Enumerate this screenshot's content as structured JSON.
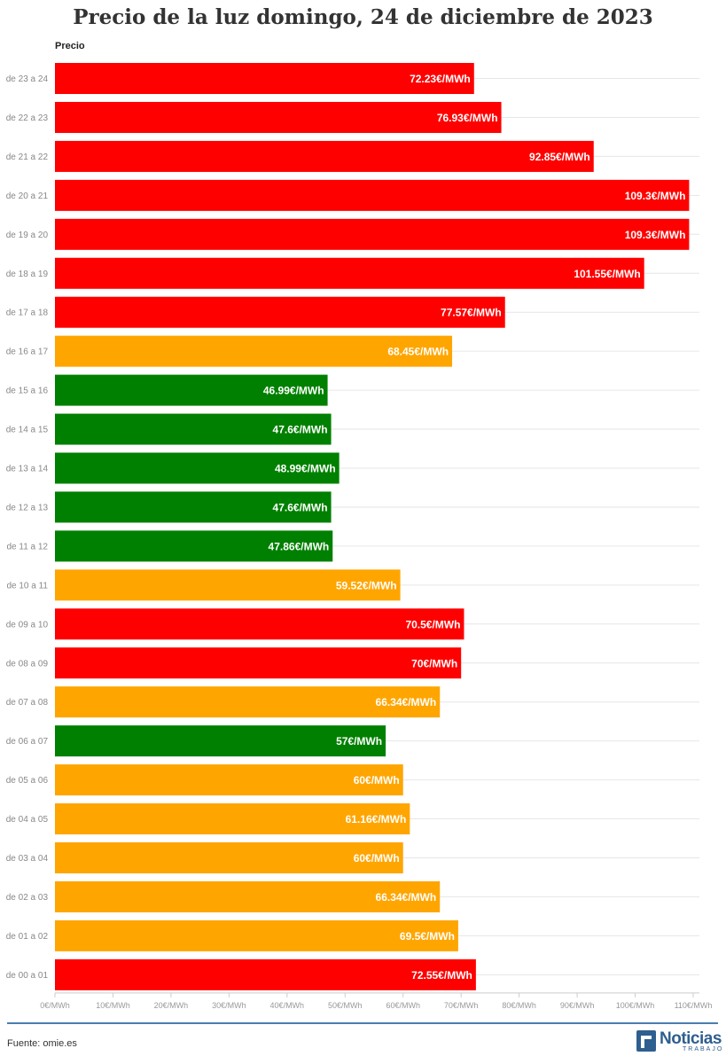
{
  "title": "Precio de la luz domingo, 24 de diciembre de 2023",
  "series_label": "Precio",
  "footer": {
    "source": "Fuente: omie.es",
    "logo_main": "Noticias",
    "logo_sub": "TRABAJO"
  },
  "colors": {
    "red": "#ff0000",
    "orange": "#ffa500",
    "green": "#008000",
    "footer_line": "#4a7fb0",
    "brand": "#2f5f8f"
  },
  "chart_data": {
    "type": "bar",
    "orientation": "horizontal",
    "title": "Precio de la luz domingo, 24 de diciembre de 2023",
    "xlabel": "",
    "ylabel": "Precio",
    "xlim": [
      0,
      110
    ],
    "x_ticks": [
      0,
      10,
      20,
      30,
      40,
      50,
      60,
      70,
      80,
      90,
      100,
      110
    ],
    "x_tick_labels": [
      "0€/MWh",
      "10€/MWh",
      "20€/MWh",
      "30€/MWh",
      "40€/MWh",
      "50€/MWh",
      "60€/MWh",
      "70€/MWh",
      "80€/MWh",
      "90€/MWh",
      "100€/MWh",
      "110€/MWh"
    ],
    "grid": true,
    "legend": "none",
    "categories": [
      "de 23 a 24",
      "de 22 a 23",
      "de 21 a 22",
      "de 20 a 21",
      "de 19 a 20",
      "de 18 a 19",
      "de 17 a 18",
      "de 16 a 17",
      "de 15 a 16",
      "de 14 a 15",
      "de 13 a 14",
      "de 12 a 13",
      "de 11 a 12",
      "de 10 a 11",
      "de 09 a 10",
      "de 08 a 09",
      "de 07 a 08",
      "de 06 a 07",
      "de 05 a 06",
      "de 04 a 05",
      "de 03 a 04",
      "de 02 a 03",
      "de 01 a 02",
      "de 00 a 01"
    ],
    "values": [
      72.23,
      76.93,
      92.85,
      109.3,
      109.3,
      101.55,
      77.57,
      68.45,
      46.99,
      47.6,
      48.99,
      47.6,
      47.86,
      59.52,
      70.5,
      70,
      66.34,
      57,
      60,
      61.16,
      60,
      66.34,
      69.5,
      72.55
    ],
    "data_labels": [
      "72.23€/MWh",
      "76.93€/MWh",
      "92.85€/MWh",
      "109.3€/MWh",
      "109.3€/MWh",
      "101.55€/MWh",
      "77.57€/MWh",
      "68.45€/MWh",
      "46.99€/MWh",
      "47.6€/MWh",
      "48.99€/MWh",
      "47.6€/MWh",
      "47.86€/MWh",
      "59.52€/MWh",
      "70.5€/MWh",
      "70€/MWh",
      "66.34€/MWh",
      "57€/MWh",
      "60€/MWh",
      "61.16€/MWh",
      "60€/MWh",
      "66.34€/MWh",
      "69.5€/MWh",
      "72.55€/MWh"
    ],
    "bar_colors": [
      "red",
      "red",
      "red",
      "red",
      "red",
      "red",
      "red",
      "orange",
      "green",
      "green",
      "green",
      "green",
      "green",
      "orange",
      "red",
      "red",
      "orange",
      "green",
      "orange",
      "orange",
      "orange",
      "orange",
      "orange",
      "red"
    ]
  }
}
